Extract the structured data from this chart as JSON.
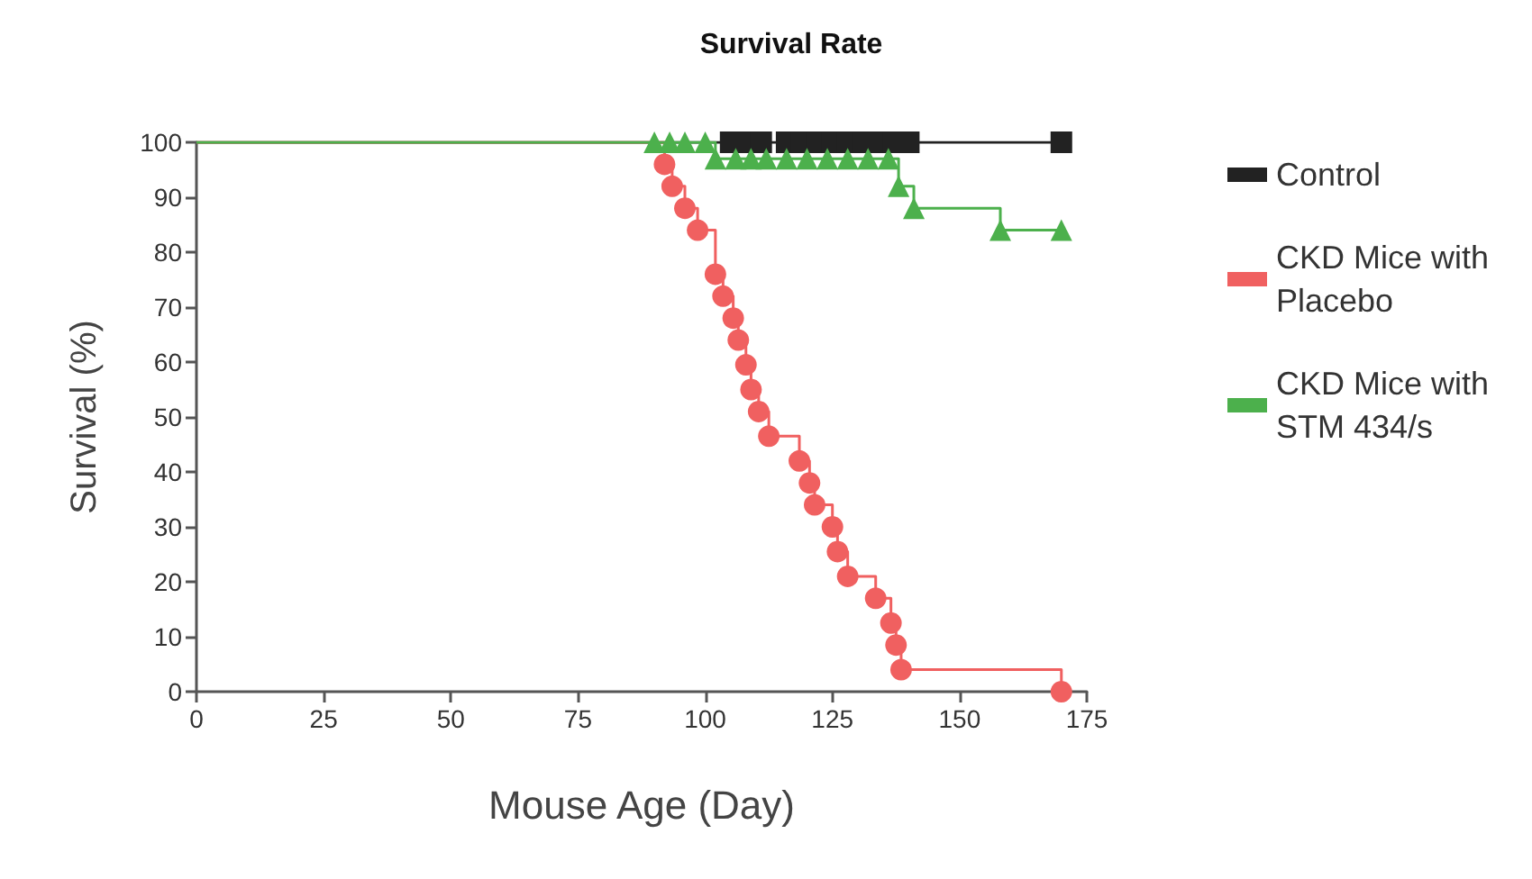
{
  "chart_data": {
    "type": "step",
    "title": "Survival Rate",
    "xlabel": "Mouse Age (Day)",
    "ylabel": "Survival (%)",
    "xlim": [
      0,
      175
    ],
    "xticks": [
      0,
      25,
      50,
      75,
      100,
      125,
      150,
      175
    ],
    "ylim": [
      0,
      100
    ],
    "yticks": [
      0,
      10,
      20,
      30,
      40,
      50,
      60,
      70,
      80,
      90,
      100
    ],
    "grid": false,
    "legend": "right",
    "series": [
      {
        "name": "Control",
        "color": "#222222",
        "marker": "square",
        "x": [
          0,
          105,
          108,
          111,
          116,
          119,
          122,
          125,
          128,
          131,
          134,
          137,
          140,
          170
        ],
        "values": [
          100,
          100,
          100,
          100,
          100,
          100,
          100,
          100,
          100,
          100,
          100,
          100,
          100,
          100
        ]
      },
      {
        "name": "CKD Mice with Placebo",
        "color": "#f06060",
        "marker": "circle",
        "x": [
          0,
          92,
          93.5,
          96,
          98.5,
          102,
          103.5,
          105.5,
          106.5,
          108,
          109,
          110.5,
          112.5,
          118.5,
          120.5,
          121.5,
          125,
          126,
          128,
          133.5,
          136.5,
          137.5,
          138.5,
          170
        ],
        "values": [
          100,
          96,
          92,
          88,
          84,
          76,
          72,
          68,
          64,
          59.5,
          55,
          51,
          46.5,
          42,
          38,
          34,
          30,
          25.5,
          21,
          17,
          12.5,
          8.5,
          4,
          0
        ]
      },
      {
        "name": "CKD Mice with STM 434/s",
        "color": "#4cb04c",
        "marker": "triangle",
        "x": [
          0,
          90,
          93,
          96,
          100,
          102,
          106,
          109,
          112,
          116,
          120,
          124,
          128,
          132,
          136,
          138,
          141,
          158,
          170
        ],
        "values": [
          100,
          100,
          100,
          100,
          100,
          97,
          97,
          97,
          97,
          97,
          97,
          97,
          97,
          97,
          97,
          92,
          88,
          84,
          84
        ]
      }
    ]
  }
}
